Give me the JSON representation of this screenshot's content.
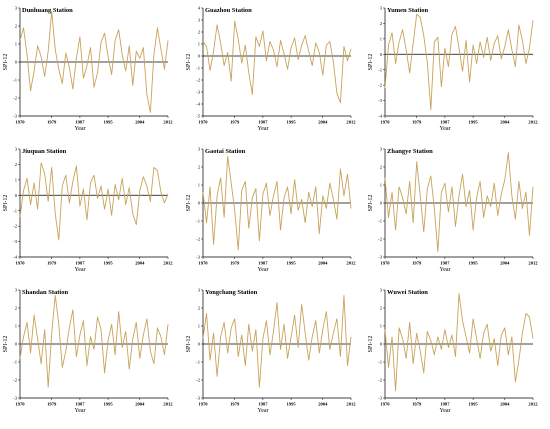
{
  "chart_data": [
    {
      "type": "line",
      "title": "Dunhuang Station",
      "xlabel": "Year",
      "ylabel": "SPI-12",
      "x_ticks": [
        "1970",
        "1979",
        "1987",
        "1995",
        "2004",
        "2012"
      ],
      "y_ticks": [
        3,
        2,
        1,
        0,
        -1,
        -2,
        -3
      ],
      "ylim": [
        -3,
        3
      ],
      "xlim": [
        1970,
        2012
      ],
      "zero_line": true,
      "series": [
        {
          "color": "#c8a35a",
          "x": [
            1970,
            1971,
            1972,
            1973,
            1974,
            1975,
            1976,
            1977,
            1978,
            1979,
            1980,
            1981,
            1982,
            1983,
            1984,
            1985,
            1986,
            1987,
            1988,
            1989,
            1990,
            1991,
            1992,
            1993,
            1994,
            1995,
            1996,
            1997,
            1998,
            1999,
            2000,
            2001,
            2002,
            2003,
            2004,
            2005,
            2006,
            2007,
            2008,
            2009,
            2010,
            2011,
            2012
          ],
          "y": [
            1.2,
            1.9,
            0.4,
            -1.6,
            -0.5,
            0.9,
            0.3,
            -0.8,
            0.6,
            2.8,
            0.7,
            -0.4,
            -1.2,
            0.5,
            -0.3,
            -1.5,
            0.2,
            1.4,
            -0.9,
            -0.2,
            0.8,
            -1.4,
            -0.6,
            1.1,
            1.6,
            0.3,
            -0.7,
            1.2,
            1.8,
            0.4,
            -0.5,
            0.9,
            -1.3,
            0.6,
            0.2,
            0.8,
            -1.8,
            -2.8,
            0.4,
            1.9,
            0.7,
            -0.4,
            1.2
          ]
        }
      ]
    },
    {
      "type": "line",
      "title": "Guazhou Station",
      "xlabel": "Year",
      "ylabel": "SPI-12",
      "x_ticks": [
        "1970",
        "1979",
        "1987",
        "1995",
        "2004",
        "2012"
      ],
      "y_ticks": [
        4,
        3,
        2,
        1,
        0,
        -1,
        -2,
        -3,
        -4,
        -5
      ],
      "ylim": [
        -5,
        4
      ],
      "xlim": [
        1970,
        2012
      ],
      "zero_line": true,
      "series": [
        {
          "color": "#c8a35a",
          "x": [
            1970,
            1971,
            1972,
            1973,
            1974,
            1975,
            1976,
            1977,
            1978,
            1979,
            1980,
            1981,
            1982,
            1983,
            1984,
            1985,
            1986,
            1987,
            1988,
            1989,
            1990,
            1991,
            1992,
            1993,
            1994,
            1995,
            1996,
            1997,
            1998,
            1999,
            2000,
            2001,
            2002,
            2003,
            2004,
            2005,
            2006,
            2007,
            2008,
            2009,
            2010,
            2011,
            2012
          ],
          "y": [
            1.2,
            0.8,
            -1.2,
            0.4,
            2.6,
            1.1,
            -0.8,
            0.3,
            -2.1,
            2.9,
            1.4,
            -0.6,
            0.9,
            -1.4,
            -3.2,
            1.6,
            0.8,
            2.1,
            -0.4,
            1.2,
            0.5,
            -0.9,
            1.3,
            0.2,
            -1.1,
            0.7,
            1.5,
            -0.3,
            0.9,
            1.7,
            0.4,
            -0.8,
            1.1,
            0.3,
            -1.6,
            0.9,
            1.2,
            -0.5,
            -3.1,
            -3.9,
            0.8,
            -0.4,
            0.6
          ]
        }
      ]
    },
    {
      "type": "line",
      "title": "Yumen Station",
      "xlabel": "Year",
      "ylabel": "SPI-12",
      "x_ticks": [
        "1970",
        "1979",
        "1987",
        "1995",
        "2004",
        "2012"
      ],
      "y_ticks": [
        3,
        2,
        1,
        0,
        -1,
        -2,
        -3,
        -4
      ],
      "ylim": [
        -4,
        3
      ],
      "xlim": [
        1970,
        2012
      ],
      "zero_line": true,
      "series": [
        {
          "color": "#c8a35a",
          "x": [
            1970,
            1971,
            1972,
            1973,
            1974,
            1975,
            1976,
            1977,
            1978,
            1979,
            1980,
            1981,
            1982,
            1983,
            1984,
            1985,
            1986,
            1987,
            1988,
            1989,
            1990,
            1991,
            1992,
            1993,
            1994,
            1995,
            1996,
            1997,
            1998,
            1999,
            2000,
            2001,
            2002,
            2003,
            2004,
            2005,
            2006,
            2007,
            2008,
            2009,
            2010,
            2011,
            2012
          ],
          "y": [
            -2.2,
            0.6,
            1.4,
            -0.6,
            0.8,
            1.6,
            0.3,
            -1.2,
            0.7,
            2.6,
            2.4,
            1.2,
            -0.5,
            -3.6,
            0.8,
            1.1,
            -2.1,
            0.4,
            -0.8,
            1.3,
            1.8,
            0.4,
            -1.1,
            0.9,
            -1.8,
            0.6,
            -0.6,
            0.8,
            -0.2,
            1.1,
            -0.4,
            0.7,
            1.2,
            -0.3,
            0.5,
            1.6,
            0.3,
            -0.8,
            1.9,
            0.9,
            -0.6,
            0.4,
            2.2
          ]
        }
      ]
    },
    {
      "type": "line",
      "title": "Jiuquan Station",
      "xlabel": "Year",
      "ylabel": "SPI-12",
      "x_ticks": [
        "1970",
        "1979",
        "1987",
        "1995",
        "2004",
        "2012"
      ],
      "y_ticks": [
        3,
        2,
        1,
        0,
        -1,
        -2,
        -3,
        -4
      ],
      "ylim": [
        -4,
        3
      ],
      "xlim": [
        1970,
        2012
      ],
      "zero_line": true,
      "series": [
        {
          "color": "#c8a35a",
          "x": [
            1970,
            1971,
            1972,
            1973,
            1974,
            1975,
            1976,
            1977,
            1978,
            1979,
            1980,
            1981,
            1982,
            1983,
            1984,
            1985,
            1986,
            1987,
            1988,
            1989,
            1990,
            1991,
            1992,
            1993,
            1994,
            1995,
            1996,
            1997,
            1998,
            1999,
            2000,
            2001,
            2002,
            2003,
            2004,
            2005,
            2006,
            2007,
            2008,
            2009,
            2010,
            2011,
            2012
          ],
          "y": [
            -1.4,
            0.3,
            1.1,
            -0.6,
            0.8,
            -0.9,
            2.1,
            1.4,
            -0.4,
            1.8,
            -1.2,
            -2.9,
            0.6,
            1.3,
            -0.5,
            0.9,
            1.9,
            -0.7,
            0.4,
            -1.6,
            0.8,
            1.3,
            -0.2,
            0.6,
            -0.9,
            0.4,
            -1.3,
            0.7,
            -0.3,
            1.1,
            -0.6,
            0.5,
            -1.2,
            -1.9,
            0.3,
            1.2,
            0.6,
            -0.4,
            1.8,
            1.6,
            0.2,
            -0.5,
            0.1
          ]
        }
      ]
    },
    {
      "type": "line",
      "title": "Gaotai Station",
      "xlabel": "Year",
      "ylabel": "SPI-12",
      "x_ticks": [
        "1970",
        "1979",
        "1987",
        "1995",
        "2004",
        "2012"
      ],
      "y_ticks": [
        3,
        2,
        1,
        0,
        -1,
        -2,
        -3
      ],
      "ylim": [
        -3,
        3
      ],
      "xlim": [
        1970,
        2012
      ],
      "zero_line": true,
      "series": [
        {
          "color": "#c8a35a",
          "x": [
            1970,
            1971,
            1972,
            1973,
            1974,
            1975,
            1976,
            1977,
            1978,
            1979,
            1980,
            1981,
            1982,
            1983,
            1984,
            1985,
            1986,
            1987,
            1988,
            1989,
            1990,
            1991,
            1992,
            1993,
            1994,
            1995,
            1996,
            1997,
            1998,
            1999,
            2000,
            2001,
            2002,
            2003,
            2004,
            2005,
            2006,
            2007,
            2008,
            2009,
            2010,
            2011,
            2012
          ],
          "y": [
            0.6,
            -1.1,
            0.9,
            -2.3,
            0.4,
            1.4,
            -0.8,
            2.6,
            1.1,
            -0.4,
            -2.6,
            0.7,
            1.2,
            -1.4,
            0.3,
            0.8,
            -2.1,
            0.5,
            1.1,
            -0.7,
            0.4,
            1.2,
            -1.5,
            0.3,
            0.9,
            -0.6,
            1.3,
            -0.4,
            0.2,
            -1.1,
            0.6,
            -0.2,
            0.9,
            -1.7,
            0.4,
            -0.3,
            1.1,
            0.2,
            -0.9,
            1.9,
            0.4,
            1.6,
            -0.3
          ]
        }
      ]
    },
    {
      "type": "line",
      "title": "Zhangye Station",
      "xlabel": "Year",
      "ylabel": "SPI-12",
      "x_ticks": [
        "1970",
        "1979",
        "1987",
        "1995",
        "2004",
        "2012"
      ],
      "y_ticks": [
        3,
        2,
        1,
        0,
        -1,
        -2,
        -3
      ],
      "ylim": [
        -3,
        3
      ],
      "xlim": [
        1970,
        2012
      ],
      "zero_line": true,
      "series": [
        {
          "color": "#c8a35a",
          "x": [
            1970,
            1971,
            1972,
            1973,
            1974,
            1975,
            1976,
            1977,
            1978,
            1979,
            1980,
            1981,
            1982,
            1983,
            1984,
            1985,
            1986,
            1987,
            1988,
            1989,
            1990,
            1991,
            1992,
            1993,
            1994,
            1995,
            1996,
            1997,
            1998,
            1999,
            2000,
            2001,
            2002,
            2003,
            2004,
            2005,
            2006,
            2007,
            2008,
            2009,
            2010,
            2011,
            2012
          ],
          "y": [
            1.4,
            -0.8,
            0.6,
            -1.5,
            0.9,
            0.3,
            -0.6,
            1.2,
            -1.1,
            2.3,
            0.4,
            -1.6,
            0.8,
            1.5,
            -0.3,
            -2.7,
            0.6,
            1.1,
            -0.5,
            0.9,
            -1.3,
            0.4,
            1.6,
            -0.2,
            0.7,
            -1.5,
            0.3,
            1.2,
            -0.8,
            0.4,
            -0.2,
            1.1,
            -0.7,
            0.5,
            1.3,
            2.8,
            0.4,
            -0.9,
            1.2,
            -0.3,
            0.6,
            -1.8,
            0.9
          ]
        }
      ]
    },
    {
      "type": "line",
      "title": "Shandan Station",
      "xlabel": "Year",
      "ylabel": "SPI-12",
      "x_ticks": [
        "1970",
        "1979",
        "1987",
        "1995",
        "2004",
        "2012"
      ],
      "y_ticks": [
        3,
        2,
        1,
        0,
        -1,
        -2,
        -3
      ],
      "ylim": [
        -3,
        3
      ],
      "xlim": [
        1970,
        2012
      ],
      "zero_line": true,
      "series": [
        {
          "color": "#c8a35a",
          "x": [
            1970,
            1971,
            1972,
            1973,
            1974,
            1975,
            1976,
            1977,
            1978,
            1979,
            1980,
            1981,
            1982,
            1983,
            1984,
            1985,
            1986,
            1987,
            1988,
            1989,
            1990,
            1991,
            1992,
            1993,
            1994,
            1995,
            1996,
            1997,
            1998,
            1999,
            2000,
            2001,
            2002,
            2003,
            2004,
            2005,
            2006,
            2007,
            2008,
            2009,
            2010,
            2011,
            2012
          ],
          "y": [
            -0.8,
            0.4,
            1.2,
            -0.5,
            1.6,
            0.3,
            -1.1,
            0.8,
            -2.4,
            0.6,
            2.7,
            1.1,
            -1.3,
            -0.4,
            0.9,
            1.9,
            -0.7,
            0.5,
            1.3,
            -1.2,
            0.4,
            -0.3,
            1.5,
            0.8,
            -1.6,
            0.2,
            1.1,
            -0.6,
            1.8,
            -0.2,
            0.7,
            -1.4,
            0.3,
            1.2,
            -0.8,
            0.5,
            1.4,
            -0.4,
            -1.1,
            0.9,
            0.4,
            -0.6,
            1.1
          ]
        }
      ]
    },
    {
      "type": "line",
      "title": "Yongchang Station",
      "xlabel": "Year",
      "ylabel": "SPI-12",
      "x_ticks": [
        "1970",
        "1979",
        "1987",
        "1995",
        "2004",
        "2012"
      ],
      "y_ticks": [
        3,
        2,
        1,
        0,
        -1,
        -2,
        -3
      ],
      "ylim": [
        -3,
        3
      ],
      "xlim": [
        1970,
        2012
      ],
      "zero_line": true,
      "series": [
        {
          "color": "#c8a35a",
          "x": [
            1970,
            1971,
            1972,
            1973,
            1974,
            1975,
            1976,
            1977,
            1978,
            1979,
            1980,
            1981,
            1982,
            1983,
            1984,
            1985,
            1986,
            1987,
            1988,
            1989,
            1990,
            1991,
            1992,
            1993,
            1994,
            1995,
            1996,
            1997,
            1998,
            1999,
            2000,
            2001,
            2002,
            2003,
            2004,
            2005,
            2006,
            2007,
            2008,
            2009,
            2010,
            2011,
            2012
          ],
          "y": [
            0.3,
            1.7,
            -0.9,
            0.6,
            -1.8,
            0.4,
            1.2,
            -0.5,
            0.9,
            1.4,
            -0.7,
            0.5,
            -1.2,
            1.1,
            -0.4,
            0.8,
            -2.4,
            0.3,
            1.3,
            -0.6,
            0.7,
            2.3,
            -0.3,
            1.1,
            -0.8,
            0.4,
            1.6,
            -0.2,
            2.2,
            0.6,
            -0.9,
            0.4,
            1.3,
            -0.5,
            0.8,
            1.8,
            -0.3,
            0.6,
            1.4,
            -0.7,
            2.7,
            -1.2,
            0.4
          ]
        }
      ]
    },
    {
      "type": "line",
      "title": "Wuwei Station",
      "xlabel": "Year",
      "ylabel": "SPI-12",
      "x_ticks": [
        "1970",
        "1979",
        "1987",
        "1995",
        "2004",
        "2012"
      ],
      "y_ticks": [
        3,
        2,
        1,
        0,
        -1,
        -2,
        -3
      ],
      "ylim": [
        -3,
        3
      ],
      "xlim": [
        1970,
        2012
      ],
      "zero_line": true,
      "series": [
        {
          "color": "#c8a35a",
          "x": [
            1970,
            1971,
            1972,
            1973,
            1974,
            1975,
            1976,
            1977,
            1978,
            1979,
            1980,
            1981,
            1982,
            1983,
            1984,
            1985,
            1986,
            1987,
            1988,
            1989,
            1990,
            1991,
            1992,
            1993,
            1994,
            1995,
            1996,
            1997,
            1998,
            1999,
            2000,
            2001,
            2002,
            2003,
            2004,
            2005,
            2006,
            2007,
            2008,
            2009,
            2010,
            2011,
            2012
          ],
          "y": [
            0.8,
            -1.3,
            0.4,
            -2.6,
            0.9,
            0.3,
            -0.8,
            1.2,
            -1.1,
            0.6,
            -0.4,
            -1.6,
            0.7,
            0.2,
            -0.6,
            0.4,
            -0.3,
            0.8,
            -0.2,
            0.5,
            -0.7,
            2.8,
            1.3,
            0.4,
            -0.5,
            1.4,
            0.3,
            -0.8,
            0.6,
            1.1,
            -0.4,
            0.3,
            -1.2,
            0.5,
            0.9,
            -0.6,
            0.4,
            -2.1,
            -0.9,
            0.6,
            1.7,
            1.5,
            0.3
          ]
        }
      ]
    }
  ]
}
